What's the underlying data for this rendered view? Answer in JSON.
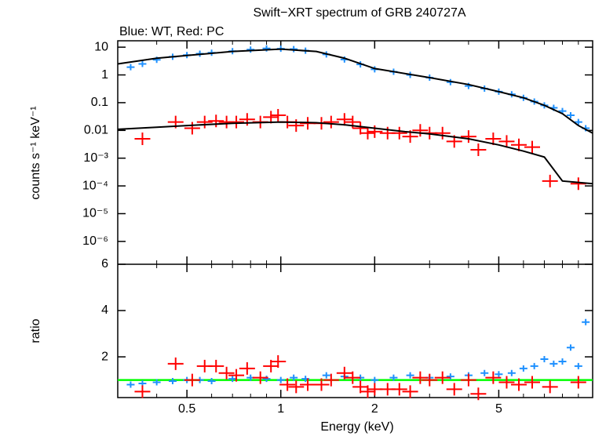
{
  "chart_data": [
    {
      "type": "log-spectrum",
      "title": "Swift−XRT spectrum of GRB 240727A",
      "subtitle": "Blue: WT, Red: PC",
      "ylabel": "counts s⁻¹ keV⁻¹",
      "yscale": "log",
      "ylim": [
        1.5e-07,
        17
      ],
      "yticks": [
        10,
        1,
        0.1,
        0.01,
        {
          "value": 0.001,
          "label": "10⁻³"
        },
        {
          "value": 0.0001,
          "label": "10⁻⁴"
        },
        {
          "value": 1e-05,
          "label": "10⁻⁵"
        },
        {
          "value": 1e-06,
          "label": "10⁻⁶"
        }
      ],
      "series": [
        {
          "style": "points",
          "color": "#1e90ff",
          "x": [
            0.33,
            0.36,
            0.4,
            0.45,
            0.5,
            0.55,
            0.6,
            0.7,
            0.8,
            0.9,
            1.0,
            1.1,
            1.2,
            1.4,
            1.6,
            1.8,
            2.0,
            2.3,
            2.6,
            3.0,
            3.5,
            4.0,
            4.5,
            5.0,
            5.5,
            6.0,
            6.5,
            7.0,
            7.5,
            8.0,
            8.5,
            9.0,
            9.5
          ],
          "values": [
            1.9,
            2.5,
            3.5,
            4.5,
            5.2,
            5.8,
            6.3,
            7.2,
            8.2,
            9,
            8.8,
            8.5,
            7.5,
            5.5,
            3.6,
            2.4,
            1.6,
            1.3,
            1.0,
            0.8,
            0.55,
            0.4,
            0.32,
            0.25,
            0.2,
            0.15,
            0.11,
            0.08,
            0.065,
            0.05,
            0.035,
            0.02,
            0.012
          ]
        },
        {
          "style": "points",
          "color": "#ff0000",
          "x": [
            0.36,
            0.46,
            0.52,
            0.57,
            0.62,
            0.67,
            0.72,
            0.78,
            0.86,
            0.93,
            0.98,
            1.05,
            1.12,
            1.22,
            1.35,
            1.45,
            1.6,
            1.7,
            1.8,
            1.9,
            2.0,
            2.2,
            2.4,
            2.6,
            2.8,
            3.0,
            3.3,
            3.6,
            4.0,
            4.3,
            4.8,
            5.3,
            5.8,
            6.4,
            7.3,
            9.0
          ],
          "values": [
            0.005,
            0.02,
            0.012,
            0.02,
            0.022,
            0.02,
            0.02,
            0.025,
            0.02,
            0.03,
            0.035,
            0.02,
            0.015,
            0.018,
            0.018,
            0.02,
            0.025,
            0.02,
            0.012,
            0.008,
            0.009,
            0.008,
            0.008,
            0.006,
            0.01,
            0.008,
            0.008,
            0.004,
            0.006,
            0.002,
            0.005,
            0.004,
            0.003,
            0.0025,
            0.00015,
            0.00012
          ]
        },
        {
          "style": "line",
          "color": "#000000",
          "x": [
            0.3,
            0.4,
            0.5,
            0.7,
            1.0,
            1.3,
            1.6,
            2,
            3,
            4,
            5,
            6,
            7,
            8,
            9,
            10
          ],
          "values": [
            2.5,
            4,
            5,
            7,
            8.5,
            7,
            4,
            1.7,
            0.8,
            0.45,
            0.25,
            0.15,
            0.08,
            0.04,
            0.015,
            0.008
          ]
        },
        {
          "style": "line",
          "color": "#000000",
          "x": [
            0.3,
            0.4,
            0.5,
            0.7,
            1,
            1.3,
            1.6,
            2,
            2.5,
            3,
            4,
            5,
            6,
            7,
            8,
            10
          ],
          "values": [
            0.011,
            0.013,
            0.015,
            0.018,
            0.02,
            0.019,
            0.016,
            0.012,
            0.009,
            0.0075,
            0.005,
            0.003,
            0.0018,
            0.0011,
            0.00015,
            0.00012
          ]
        }
      ]
    },
    {
      "type": "ratio",
      "ylabel": "ratio",
      "xlabel": "Energy (keV)",
      "xscale": "log",
      "xlim": [
        0.3,
        10
      ],
      "xticks": [
        0.5,
        1,
        2,
        5
      ],
      "xminorticks": [
        0.3,
        0.4,
        0.6,
        0.7,
        0.8,
        0.9,
        3,
        4,
        6,
        7,
        8,
        9
      ],
      "ylim": [
        0.24,
        6
      ],
      "yticks": [
        2,
        4,
        6
      ],
      "hline": 1,
      "hline_color": "#00ff00",
      "series": [
        {
          "style": "points",
          "color": "#1e90ff",
          "x": [
            0.33,
            0.36,
            0.4,
            0.45,
            0.5,
            0.55,
            0.6,
            0.7,
            0.8,
            0.9,
            1.0,
            1.1,
            1.2,
            1.4,
            1.6,
            1.8,
            2.0,
            2.3,
            2.6,
            3.0,
            3.5,
            4.0,
            4.5,
            5.0,
            5.5,
            6.0,
            6.5,
            7.0,
            7.5,
            8.0,
            8.5,
            9.0,
            9.5
          ],
          "values": [
            0.8,
            0.85,
            0.9,
            0.95,
            1.0,
            1.0,
            0.95,
            1.05,
            1.1,
            1.05,
            1.0,
            1.1,
            1.05,
            1.2,
            1.15,
            1.1,
            1.0,
            1.1,
            1.2,
            1.1,
            1.15,
            1.2,
            1.3,
            1.25,
            1.3,
            1.5,
            1.6,
            1.9,
            1.7,
            1.8,
            2.4,
            1.6,
            3.5
          ]
        },
        {
          "style": "points",
          "color": "#ff0000",
          "x": [
            0.36,
            0.46,
            0.52,
            0.57,
            0.62,
            0.67,
            0.72,
            0.78,
            0.86,
            0.93,
            0.98,
            1.05,
            1.12,
            1.22,
            1.35,
            1.45,
            1.6,
            1.7,
            1.8,
            1.9,
            2.0,
            2.2,
            2.4,
            2.6,
            2.8,
            3.0,
            3.3,
            3.6,
            4.0,
            4.3,
            4.8,
            5.3,
            5.8,
            6.4,
            7.3,
            9.0
          ],
          "values": [
            0.5,
            1.7,
            1.0,
            1.6,
            1.6,
            1.3,
            1.2,
            1.5,
            1.1,
            1.6,
            1.8,
            0.8,
            0.7,
            0.8,
            0.8,
            1.0,
            1.3,
            1.1,
            0.7,
            0.5,
            0.6,
            0.6,
            0.6,
            0.5,
            1.1,
            1.0,
            1.1,
            0.6,
            1.0,
            0.4,
            1.1,
            0.9,
            0.8,
            0.9,
            0.7,
            0.9
          ]
        }
      ]
    }
  ]
}
